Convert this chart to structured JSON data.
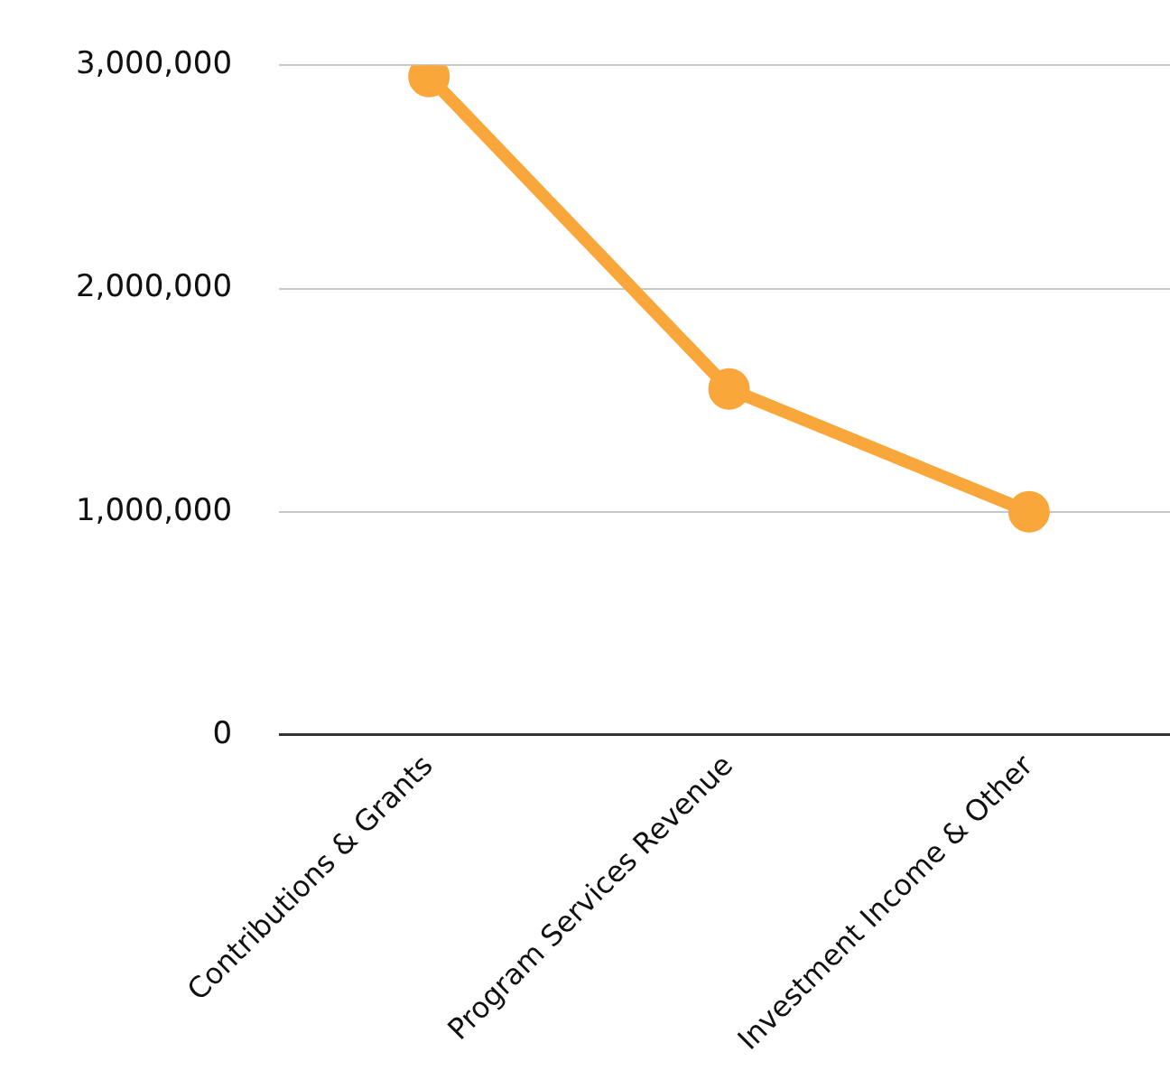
{
  "chart_data": {
    "type": "line",
    "categories": [
      "Contributions & Grants",
      "Program Services Revenue",
      "Investment Income & Other"
    ],
    "series": [
      {
        "color": "#f9a73a",
        "values": [
          2950000,
          1550000,
          1000000
        ]
      }
    ],
    "ylim": [
      0,
      3000000
    ],
    "yticks": [
      {
        "value": 0,
        "label": "0"
      },
      {
        "value": 1000000,
        "label": "1,000,000"
      },
      {
        "value": 2000000,
        "label": "2,000,000"
      },
      {
        "value": 3000000,
        "label": "3,000,000"
      }
    ],
    "grid": "y",
    "legend": false,
    "marker": "circle",
    "line_style": "solid"
  }
}
